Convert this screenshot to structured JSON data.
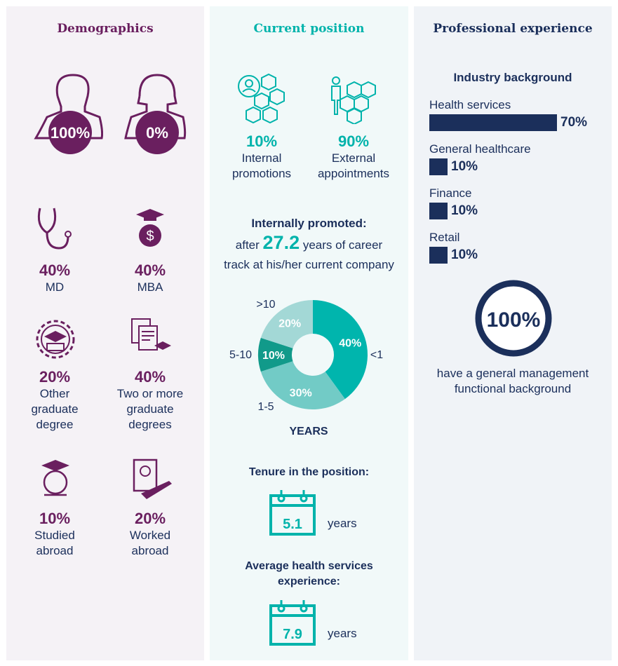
{
  "colors": {
    "purple": "#6a1f5f",
    "teal": "#00b3ab",
    "navy": "#1b2f5b"
  },
  "demographics": {
    "title": "Demographics",
    "gender": [
      {
        "icon": "male-icon",
        "value": "100%"
      },
      {
        "icon": "female-icon",
        "value": "0%"
      }
    ],
    "items": [
      {
        "icon": "stethoscope-icon",
        "value": "40%",
        "label": "MD"
      },
      {
        "icon": "graduation-money-icon",
        "value": "40%",
        "label": "MBA"
      },
      {
        "icon": "graduation-gear-icon",
        "value": "20%",
        "label1": "Other",
        "label2": "graduate",
        "label3": "degree"
      },
      {
        "icon": "documents-graduation-icon",
        "value": "40%",
        "label1": "Two or more",
        "label2": "graduate",
        "label3": "degrees"
      },
      {
        "icon": "globe-graduation-icon",
        "value": "10%",
        "label1": "Studied",
        "label2": "abroad"
      },
      {
        "icon": "passport-plane-icon",
        "value": "20%",
        "label1": "Worked",
        "label2": "abroad"
      }
    ]
  },
  "current": {
    "title": "Current position",
    "internal": {
      "value": "10%",
      "label1": "Internal",
      "label2": "promotions"
    },
    "external": {
      "value": "90%",
      "label1": "External",
      "label2": "appointments"
    },
    "promoted_title": "Internally promoted:",
    "promoted_pre": "after",
    "promoted_value": "27.2",
    "promoted_post": "years of career",
    "promoted_line2": "track at his/her current company",
    "chart_data": {
      "type": "pie",
      "xlabel": "YEARS",
      "categories": [
        "<1",
        "1-5",
        "5-10",
        ">10"
      ],
      "values": [
        40,
        30,
        10,
        20
      ],
      "labels": [
        "40%",
        "30%",
        "10%",
        "20%"
      ],
      "colors": [
        "#00b5ad",
        "#72cbc6",
        "#119a8a",
        "#a3d8d6"
      ]
    },
    "tenure_title": "Tenure in the position:",
    "tenure_value": "5.1",
    "tenure_unit": "years",
    "exp_title1": "Average health services",
    "exp_title2": "experience:",
    "exp_value": "7.9",
    "exp_unit": "years"
  },
  "professional": {
    "title": "Professional experience",
    "industry_title": "Industry background",
    "industries": [
      {
        "name": "Health services",
        "value": "70%",
        "pct": 70
      },
      {
        "name": "General healthcare",
        "value": "10%",
        "pct": 10
      },
      {
        "name": "Finance",
        "value": "10%",
        "pct": 10
      },
      {
        "name": "Retail",
        "value": "10%",
        "pct": 10
      }
    ],
    "gm_value": "100%",
    "gm_line1": "have a general management",
    "gm_line2": "functional background"
  }
}
